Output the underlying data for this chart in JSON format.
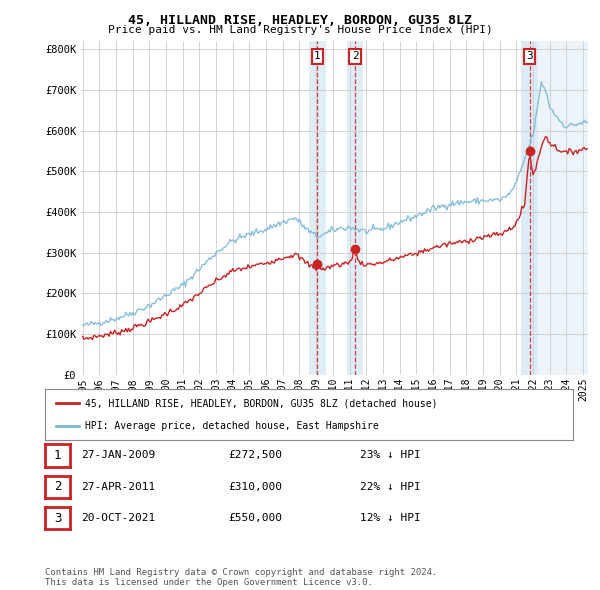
{
  "title": "45, HILLAND RISE, HEADLEY, BORDON, GU35 8LZ",
  "subtitle": "Price paid vs. HM Land Registry's House Price Index (HPI)",
  "hpi_label": "HPI: Average price, detached house, East Hampshire",
  "property_label": "45, HILLAND RISE, HEADLEY, BORDON, GU35 8LZ (detached house)",
  "footer": "Contains HM Land Registry data © Crown copyright and database right 2024.\nThis data is licensed under the Open Government Licence v3.0.",
  "ylim": [
    0,
    820000
  ],
  "yticks": [
    0,
    100000,
    200000,
    300000,
    400000,
    500000,
    600000,
    700000,
    800000
  ],
  "ytick_labels": [
    "£0",
    "£100K",
    "£200K",
    "£300K",
    "£400K",
    "£500K",
    "£600K",
    "£700K",
    "£800K"
  ],
  "hpi_color": "#7ab8d9",
  "property_color": "#cc2222",
  "sale_color": "#cc2222",
  "shade_color": "#daeaf5",
  "transactions": [
    {
      "num": 1,
      "date": "27-JAN-2009",
      "price": 272500,
      "hpi_diff": "23% ↓ HPI",
      "x": 2009.08
    },
    {
      "num": 2,
      "date": "27-APR-2011",
      "price": 310000,
      "hpi_diff": "22% ↓ HPI",
      "x": 2011.33
    },
    {
      "num": 3,
      "date": "20-OCT-2021",
      "price": 550000,
      "hpi_diff": "12% ↓ HPI",
      "x": 2021.8
    }
  ],
  "xlim": [
    1994.9,
    2025.3
  ],
  "xtick_years": [
    1995,
    1996,
    1997,
    1998,
    1999,
    2000,
    2001,
    2002,
    2003,
    2004,
    2005,
    2006,
    2007,
    2008,
    2009,
    2010,
    2011,
    2012,
    2013,
    2014,
    2015,
    2016,
    2017,
    2018,
    2019,
    2020,
    2021,
    2022,
    2023,
    2024,
    2025
  ]
}
